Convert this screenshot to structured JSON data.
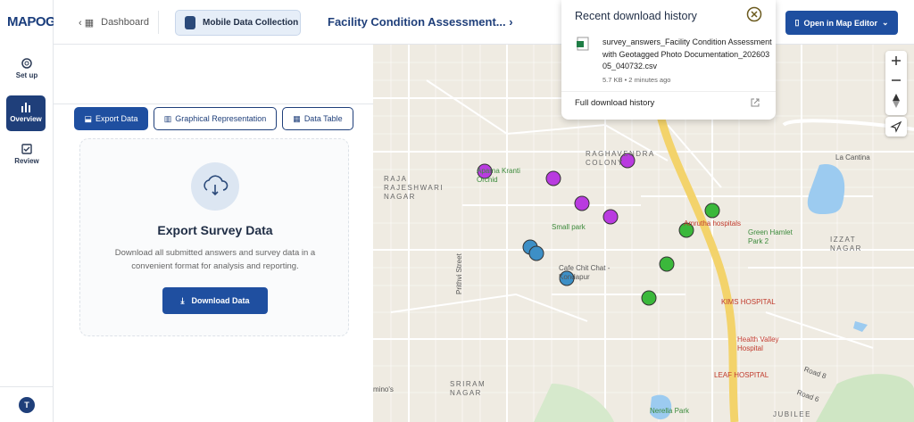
{
  "app": {
    "logo": "MAPOG"
  },
  "breadcrumb": {
    "back": "Dashboard",
    "current": "Mobile Data Collection",
    "project": "Facility Condition Assessment..."
  },
  "header": {
    "open_button": "Open in Map Editor"
  },
  "sidebar": {
    "items": [
      "Set up",
      "Overview",
      "Review"
    ],
    "avatar": "T"
  },
  "tabs": [
    "Export Data",
    "Graphical Representation",
    "Data Table"
  ],
  "export_card": {
    "title": "Export Survey Data",
    "description": "Download all submitted answers and survey data in a convenient format for analysis and reporting.",
    "button": "Download Data"
  },
  "download_history": {
    "title": "Recent download history",
    "file": {
      "name": "survey_answers_Facility Condition Assessment with Geotagged Photo Documentation_20260305_040732.csv",
      "meta": "5.7 KB • 2 minutes ago"
    },
    "link": "Full download history"
  },
  "map": {
    "labels": [
      "RAGHAVENDRA COLONY",
      "RAJA RAJESHWARI NAGAR",
      "Aparna Kranti Orchid",
      "Small park",
      "Cafe Chit Chat - Kondapur",
      "Prithvi Street",
      "Amrutha hospitals",
      "Green Hamlet Park 2",
      "IZZAT NAGAR",
      "KIMS HOSPITAL",
      "Health Valley Hospital",
      "LEAF HOSPITAL",
      "SRIRAM NAGAR",
      "Road 8",
      "Road 6",
      "JUBILEE",
      "Nerella Park",
      "La Cantina",
      "mino's"
    ]
  }
}
